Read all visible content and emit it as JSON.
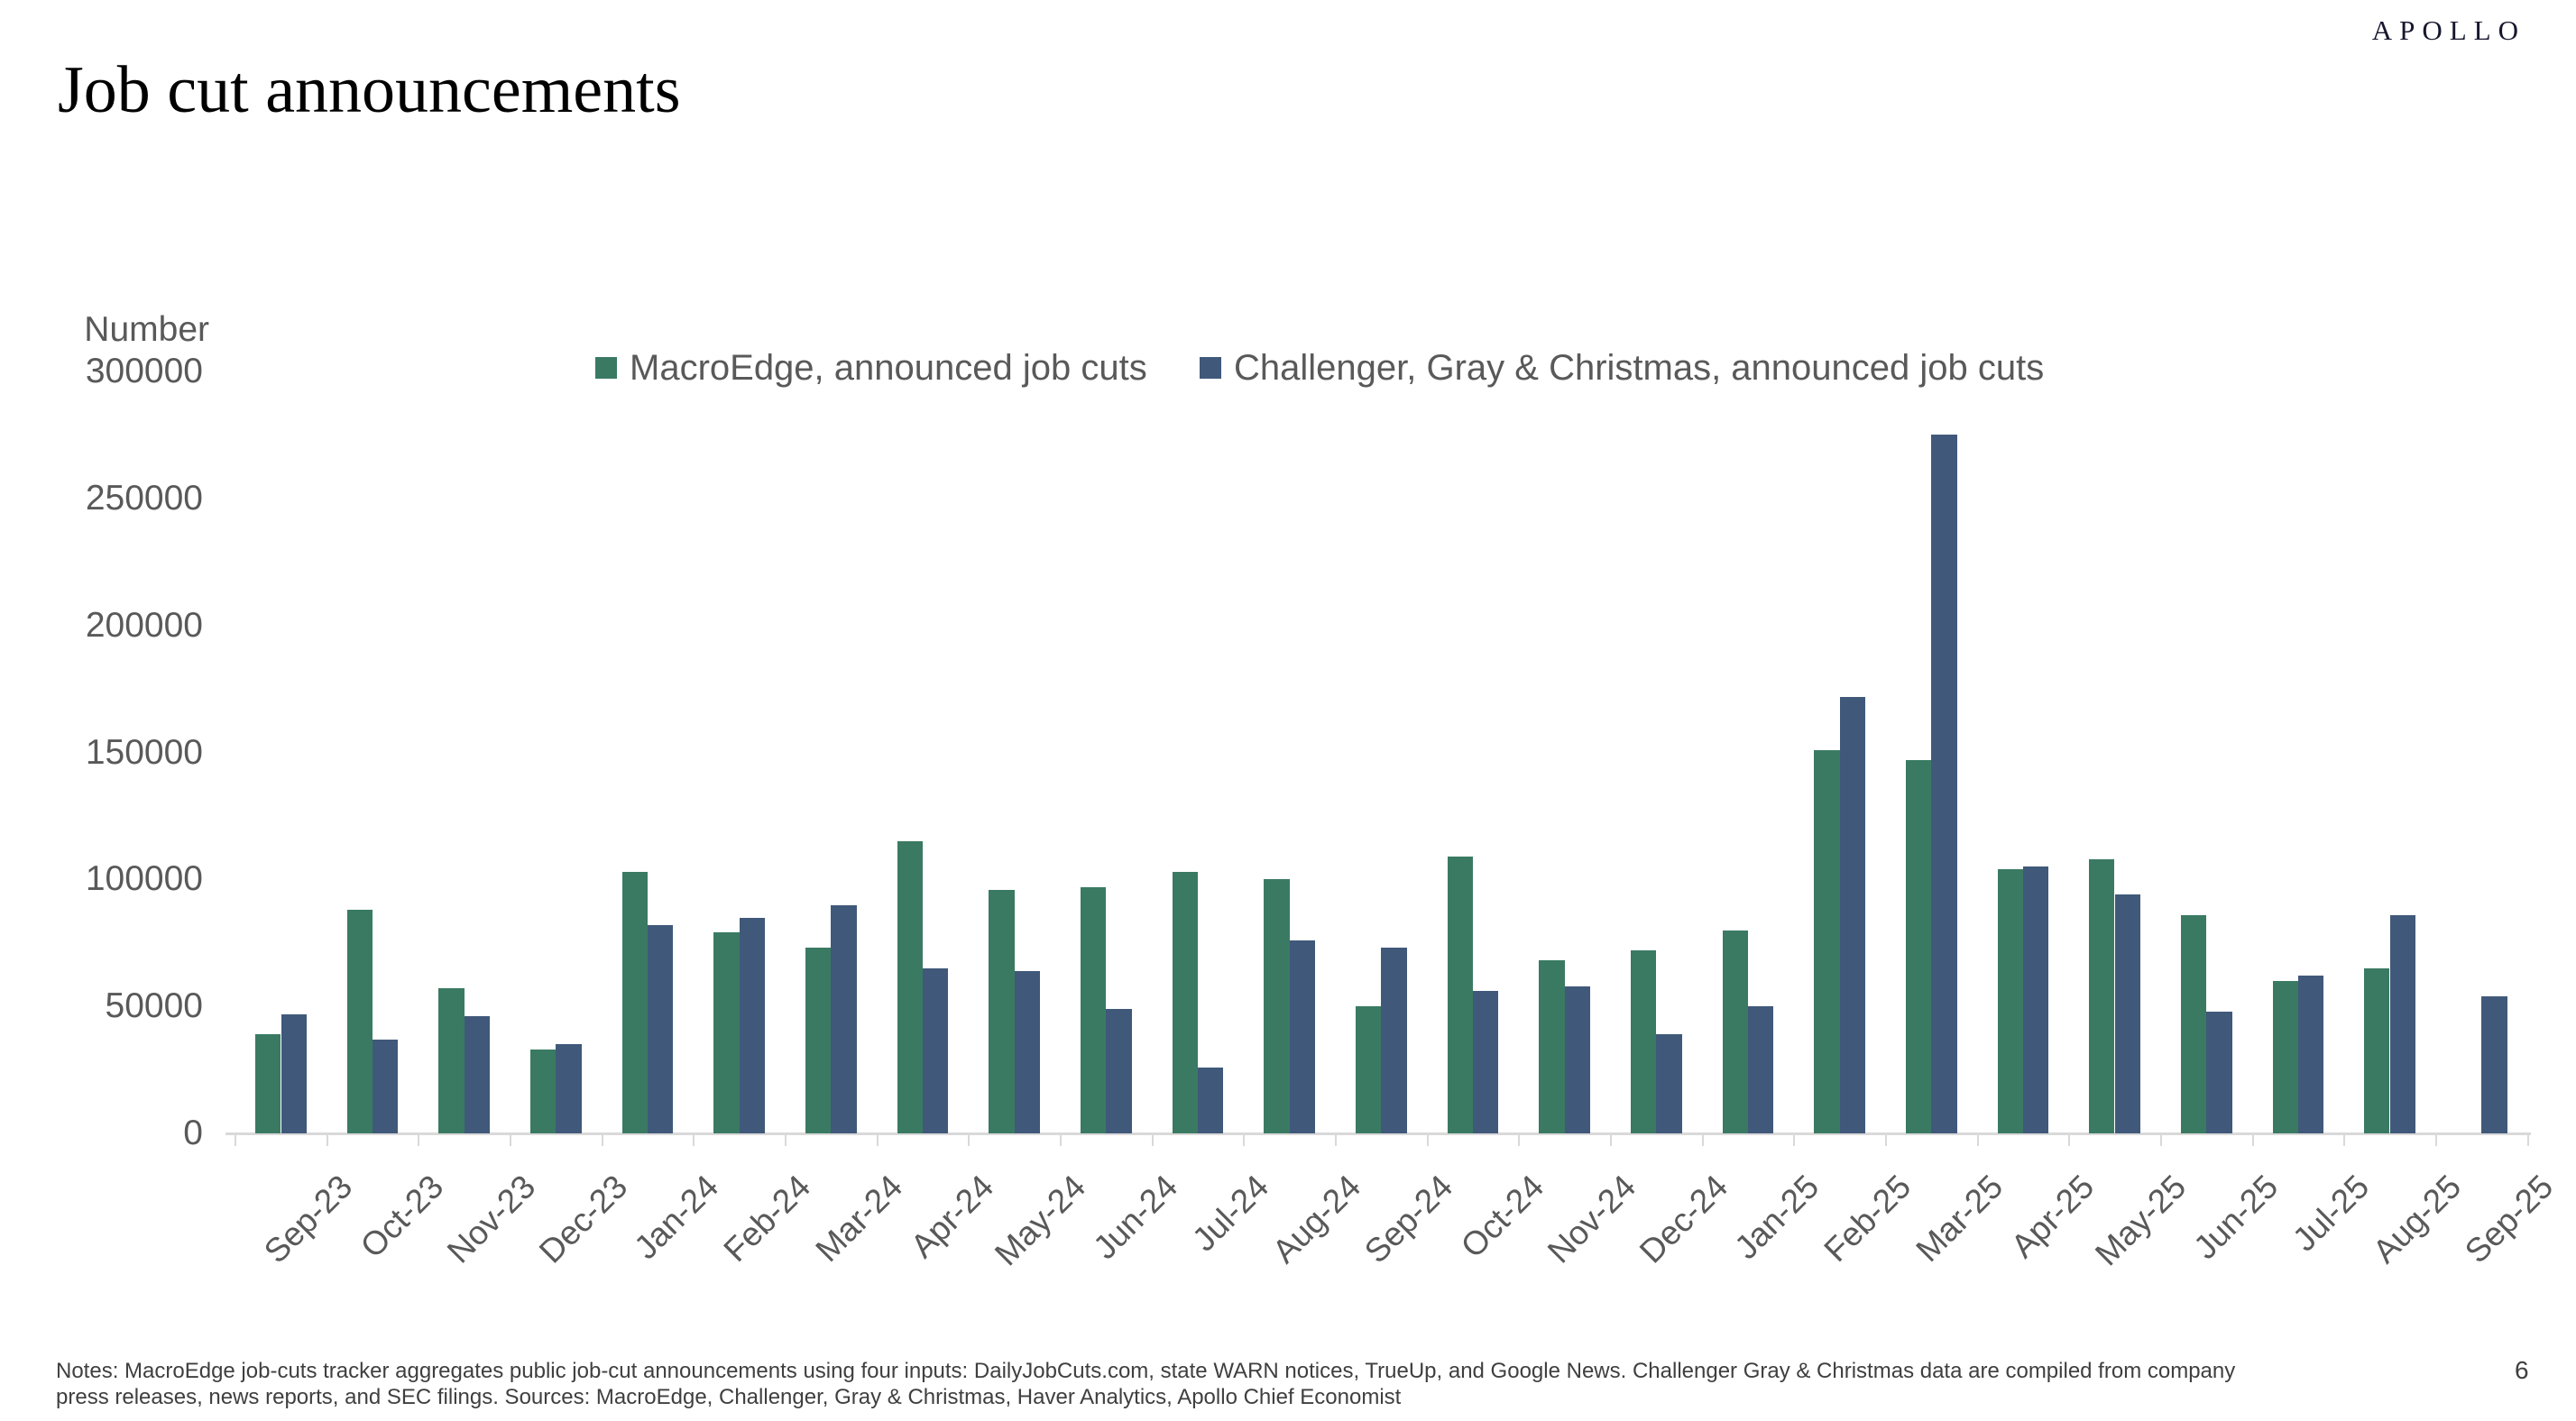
{
  "header": {
    "title": "Job cut announcements",
    "logo": "APOLLO"
  },
  "chart_data": {
    "type": "bar",
    "title": "Job cut announcements",
    "y_axis_title": "Number",
    "xlabel": "",
    "ylabel": "Number",
    "ylim": [
      0,
      300000
    ],
    "y_ticks": [
      300000,
      250000,
      200000,
      150000,
      100000,
      50000,
      0
    ],
    "grid": false,
    "legend_position": "top",
    "categories": [
      "Sep-23",
      "Oct-23",
      "Nov-23",
      "Dec-23",
      "Jan-24",
      "Feb-24",
      "Mar-24",
      "Apr-24",
      "May-24",
      "Jun-24",
      "Jul-24",
      "Aug-24",
      "Sep-24",
      "Oct-24",
      "Nov-24",
      "Dec-24",
      "Jan-25",
      "Feb-25",
      "Mar-25",
      "Apr-25",
      "May-25",
      "Jun-25",
      "Jul-25",
      "Aug-25",
      "Sep-25"
    ],
    "series": [
      {
        "name": "MacroEdge, announced job cuts",
        "color": "#3A7A63",
        "values": [
          39000,
          88000,
          57000,
          33000,
          103000,
          79000,
          73000,
          115000,
          96000,
          97000,
          103000,
          100000,
          50000,
          109000,
          68000,
          72000,
          80000,
          151000,
          147000,
          104000,
          108000,
          86000,
          60000,
          65000,
          null
        ]
      },
      {
        "name": "Challenger, Gray & Christmas, announced job cuts",
        "color": "#40597A",
        "values": [
          47000,
          37000,
          46000,
          35000,
          82000,
          85000,
          90000,
          65000,
          64000,
          49000,
          26000,
          76000,
          73000,
          56000,
          58000,
          39000,
          50000,
          172000,
          275000,
          105000,
          94000,
          48000,
          62000,
          86000,
          54000
        ]
      }
    ]
  },
  "footer": {
    "notes_line1": "Notes: MacroEdge job-cuts tracker aggregates public job-cut announcements using four inputs: DailyJobCuts.com, state WARN notices, TrueUp, and Google News. Challenger Gray & Christmas data are compiled from company",
    "notes_line2": "press releases, news reports, and SEC filings. Sources: MacroEdge, Challenger, Gray & Christmas, Haver Analytics, Apollo Chief Economist",
    "page_number": "6"
  }
}
